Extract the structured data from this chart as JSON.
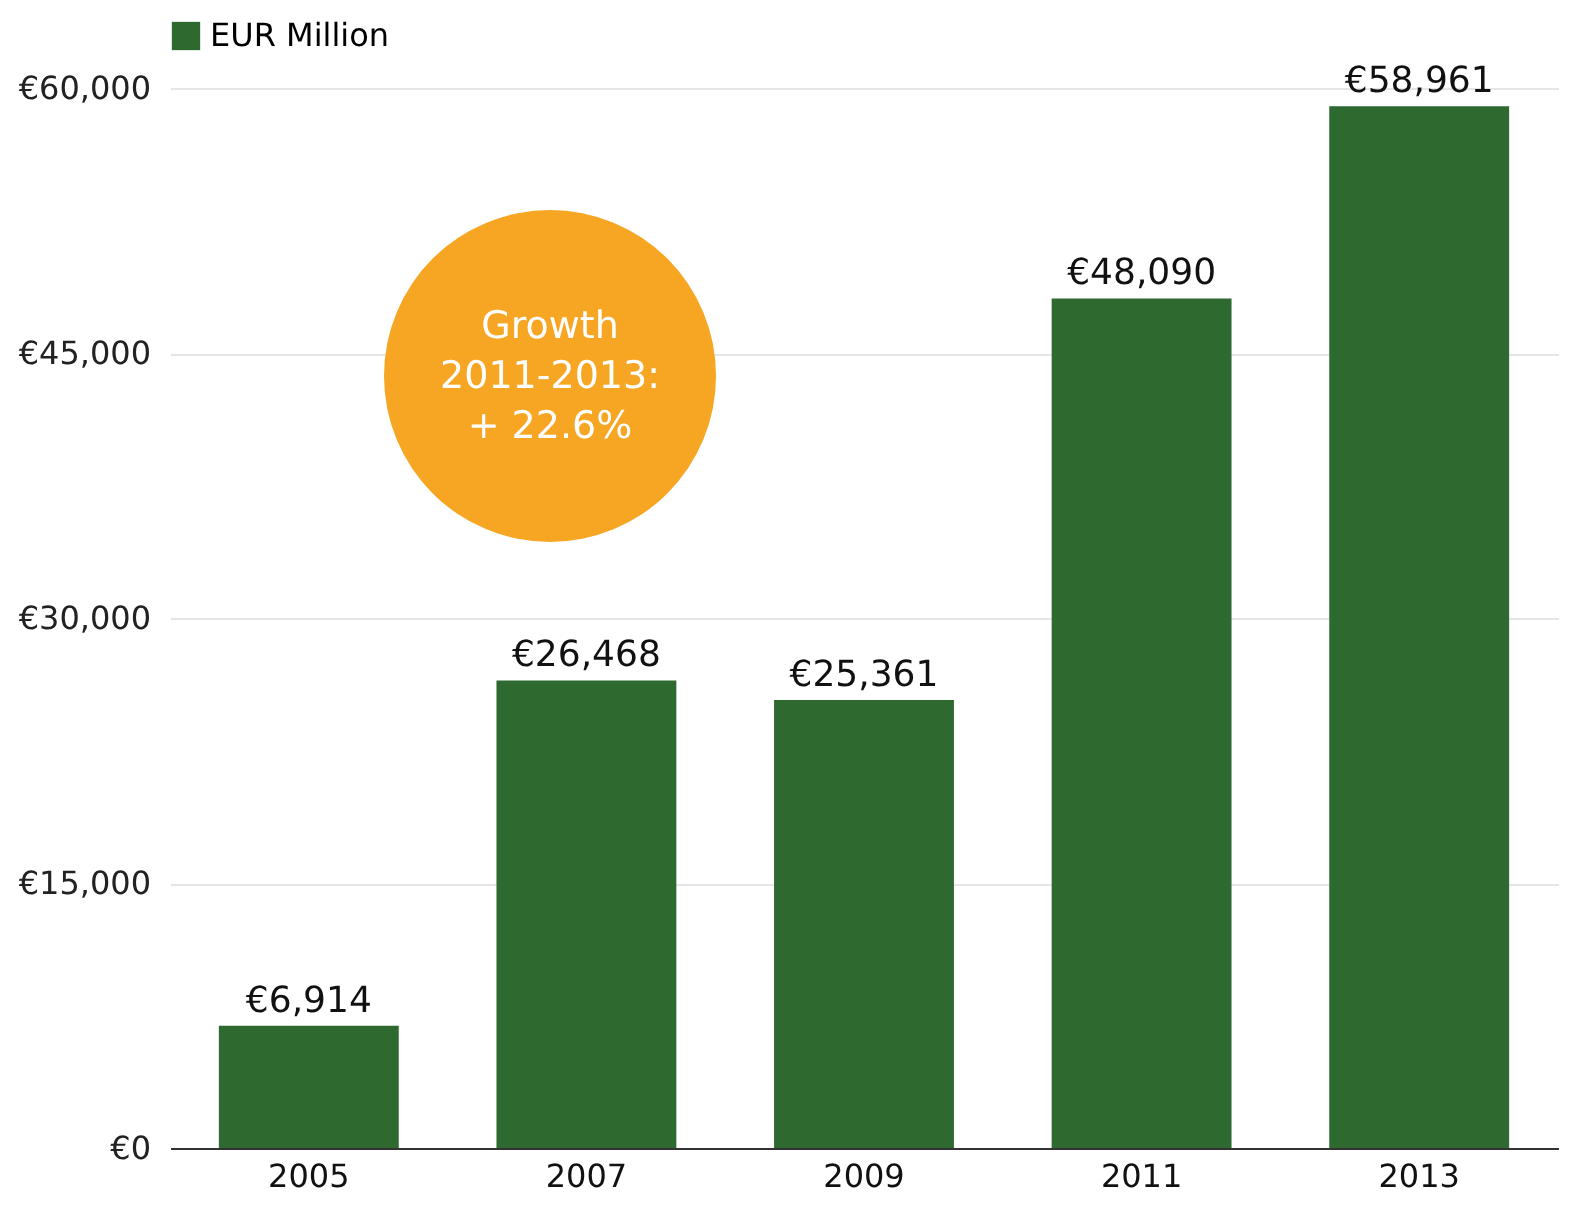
{
  "chart_data": {
    "type": "bar",
    "categories": [
      "2005",
      "2007",
      "2009",
      "2011",
      "2013"
    ],
    "series": [
      {
        "name": "EUR Million",
        "color": "#2e6930",
        "values": [
          6914,
          26468,
          25361,
          48090,
          58961
        ],
        "value_labels": [
          "€6,914",
          "€26,468",
          "€25,361",
          "€48,090",
          "€58,961"
        ]
      }
    ],
    "ylim": [
      0,
      60000
    ],
    "yticks": [
      {
        "value": 0,
        "label": "€0"
      },
      {
        "value": 15000,
        "label": "€15,000"
      },
      {
        "value": 30000,
        "label": "€30,000"
      },
      {
        "value": 45000,
        "label": "€45,000"
      },
      {
        "value": 60000,
        "label": "€60,000"
      }
    ],
    "grid": "y",
    "legend": "top",
    "annotations": [
      "Growth\n2011-2013:\n+ 22.6%"
    ]
  }
}
